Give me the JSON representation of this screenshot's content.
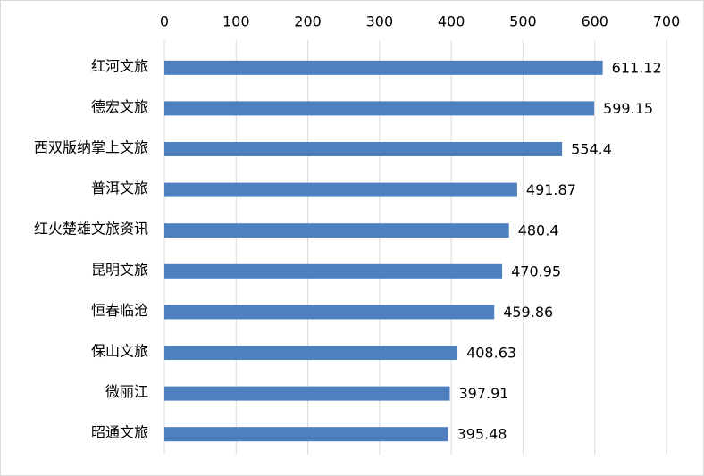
{
  "chart_data": {
    "type": "bar",
    "orientation": "horizontal",
    "categories": [
      "红河文旅",
      "德宏文旅",
      "西双版纳掌上文旅",
      "普洱文旅",
      "红火楚雄文旅资讯",
      "昆明文旅",
      "恒春临沧",
      "保山文旅",
      "微丽江",
      "昭通文旅"
    ],
    "values": [
      611.12,
      599.15,
      554.4,
      491.87,
      480.4,
      470.95,
      459.86,
      408.63,
      397.91,
      395.48
    ],
    "color": "#4e7fbf",
    "xlim": [
      0,
      700
    ],
    "xticks": [
      0,
      100,
      200,
      300,
      400,
      500,
      600,
      700
    ],
    "grid": true
  }
}
